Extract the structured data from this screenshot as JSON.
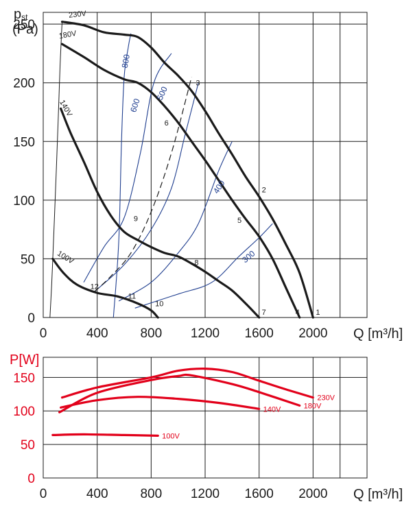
{
  "chart_data": [
    {
      "type": "line",
      "title": "",
      "ylabel_main": "p",
      "ylabel_sub": "st",
      "ylabel_unit": "(Pa)",
      "xlabel": "Q [m³/h]",
      "xlim": [
        0,
        2400
      ],
      "ylim": [
        0,
        260
      ],
      "xticks": [
        0,
        400,
        800,
        1200,
        1600,
        2000
      ],
      "yticks": [
        0,
        50,
        100,
        150,
        200,
        250
      ],
      "series": [
        {
          "name": "230V",
          "points": [
            [
              140,
              252
            ],
            [
              300,
              249
            ],
            [
              450,
              243
            ],
            [
              600,
              241
            ],
            [
              700,
              239
            ],
            [
              800,
              230
            ],
            [
              900,
              217
            ],
            [
              1000,
              206
            ],
            [
              1100,
              193
            ],
            [
              1200,
              176
            ],
            [
              1300,
              157
            ],
            [
              1400,
              139
            ],
            [
              1500,
              120
            ],
            [
              1600,
              103
            ],
            [
              1700,
              84
            ],
            [
              1800,
              62
            ],
            [
              1900,
              38
            ],
            [
              2000,
              0
            ]
          ]
        },
        {
          "name": "180V",
          "points": [
            [
              140,
              233
            ],
            [
              300,
              222
            ],
            [
              450,
              211
            ],
            [
              600,
              203
            ],
            [
              700,
              200
            ],
            [
              800,
              192
            ],
            [
              900,
              180
            ],
            [
              1000,
              166
            ],
            [
              1100,
              150
            ],
            [
              1200,
              134
            ],
            [
              1300,
              117
            ],
            [
              1400,
              100
            ],
            [
              1500,
              84
            ],
            [
              1600,
              69
            ],
            [
              1700,
              50
            ],
            [
              1800,
              25
            ],
            [
              1900,
              0
            ]
          ]
        },
        {
          "name": "140V",
          "points": [
            [
              130,
              178
            ],
            [
              200,
              158
            ],
            [
              300,
              133
            ],
            [
              400,
              107
            ],
            [
              500,
              87
            ],
            [
              600,
              73
            ],
            [
              700,
              66
            ],
            [
              800,
              60
            ],
            [
              900,
              55
            ],
            [
              1000,
              52
            ],
            [
              1100,
              46
            ],
            [
              1200,
              39
            ],
            [
              1300,
              31
            ],
            [
              1400,
              23
            ],
            [
              1500,
              12
            ],
            [
              1600,
              0
            ]
          ]
        },
        {
          "name": "100V",
          "points": [
            [
              70,
              50
            ],
            [
              150,
              38
            ],
            [
              250,
              28
            ],
            [
              400,
              21
            ],
            [
              550,
              18
            ],
            [
              700,
              12
            ],
            [
              800,
              6
            ],
            [
              850,
              0
            ]
          ]
        }
      ],
      "efficiency_lines": [
        {
          "name": "800",
          "points": [
            [
              520,
              0
            ],
            [
              560,
              65
            ],
            [
              580,
              150
            ],
            [
              600,
              205
            ],
            [
              630,
              230
            ],
            [
              650,
              242
            ]
          ]
        },
        {
          "name": "600",
          "points": [
            [
              300,
              30
            ],
            [
              450,
              60
            ],
            [
              600,
              85
            ],
            [
              720,
              140
            ],
            [
              820,
              200
            ],
            [
              950,
              225
            ]
          ]
        },
        {
          "name": "500",
          "points": [
            [
              380,
              22
            ],
            [
              600,
              45
            ],
            [
              800,
              75
            ],
            [
              950,
              110
            ],
            [
              1050,
              155
            ],
            [
              1150,
              200
            ]
          ]
        },
        {
          "name": "400",
          "points": [
            [
              560,
              14
            ],
            [
              800,
              30
            ],
            [
              1000,
              55
            ],
            [
              1150,
              80
            ],
            [
              1300,
              125
            ],
            [
              1400,
              150
            ]
          ]
        },
        {
          "name": "300",
          "points": [
            [
              680,
              8
            ],
            [
              1000,
              20
            ],
            [
              1250,
              30
            ],
            [
              1450,
              52
            ],
            [
              1600,
              68
            ],
            [
              1700,
              80
            ]
          ]
        }
      ],
      "system_line": {
        "points": [
          [
            380,
            22
          ],
          [
            500,
            35
          ],
          [
            650,
            55
          ],
          [
            800,
            90
          ],
          [
            950,
            140
          ],
          [
            1100,
            205
          ]
        ]
      },
      "left_envelope": {
        "points": [
          [
            50,
            0
          ],
          [
            60,
            22
          ],
          [
            70,
            48
          ],
          [
            90,
            105
          ],
          [
            110,
            165
          ],
          [
            125,
            215
          ],
          [
            140,
            252
          ]
        ]
      },
      "operating_points": [
        {
          "label": "1",
          "q": 2000,
          "p": 0
        },
        {
          "label": "2",
          "q": 1600,
          "p": 103
        },
        {
          "label": "3",
          "q": 1100,
          "p": 193
        },
        {
          "label": "4",
          "q": 1900,
          "p": 0
        },
        {
          "label": "5",
          "q": 1500,
          "p": 84
        },
        {
          "label": "6",
          "q": 1000,
          "p": 166
        },
        {
          "label": "7",
          "q": 1600,
          "p": 0
        },
        {
          "label": "8",
          "q": 1100,
          "p": 46
        },
        {
          "label": "9",
          "q": 650,
          "p": 82
        },
        {
          "label": "10",
          "q": 850,
          "p": 6
        },
        {
          "label": "11",
          "q": 700,
          "p": 15
        },
        {
          "label": "12",
          "q": 400,
          "p": 23
        }
      ]
    },
    {
      "type": "line",
      "title": "",
      "ylabel": "P[W]",
      "xlabel": "Q [m³/h]",
      "xlim": [
        0,
        2400
      ],
      "ylim": [
        0,
        180
      ],
      "xticks": [
        0,
        400,
        800,
        1200,
        1600,
        2000
      ],
      "yticks": [
        0,
        50,
        100,
        150
      ],
      "series": [
        {
          "name": "230V",
          "points": [
            [
              140,
              120
            ],
            [
              400,
              135
            ],
            [
              800,
              150
            ],
            [
              1000,
              160
            ],
            [
              1200,
              163
            ],
            [
              1400,
              158
            ],
            [
              1600,
              145
            ],
            [
              1800,
              132
            ],
            [
              2000,
              120
            ]
          ]
        },
        {
          "name": "180V",
          "points": [
            [
              120,
              98
            ],
            [
              400,
              127
            ],
            [
              800,
              146
            ],
            [
              1000,
              152
            ],
            [
              1100,
              153
            ],
            [
              1400,
              140
            ],
            [
              1600,
              128
            ],
            [
              1900,
              108
            ]
          ]
        },
        {
          "name": "140V",
          "points": [
            [
              130,
              105
            ],
            [
              400,
              116
            ],
            [
              700,
              121
            ],
            [
              1000,
              118
            ],
            [
              1300,
              112
            ],
            [
              1600,
              103
            ]
          ]
        },
        {
          "name": "100V",
          "points": [
            [
              70,
              64
            ],
            [
              300,
              65
            ],
            [
              600,
              64
            ],
            [
              850,
              63
            ]
          ]
        }
      ]
    }
  ]
}
